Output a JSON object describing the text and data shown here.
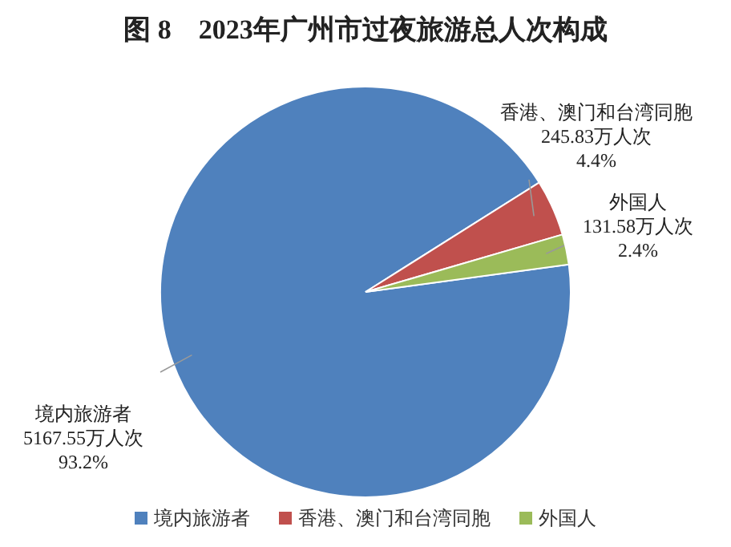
{
  "chart_data": {
    "type": "pie",
    "title": "图 8　2023年广州市过夜旅游总人次构成",
    "categories": [
      "境内旅游者",
      "香港、澳门和台湾同胞",
      "外国人"
    ],
    "values": [
      5167.55,
      245.83,
      131.58
    ],
    "colors": [
      "#4f81bd",
      "#c0504d",
      "#9bbb59"
    ],
    "value_labels": [
      "5167.55万人次\n93.2%",
      "245.83万人次\n4.4%",
      "131.58万人次\n2.4%"
    ],
    "legend": "bottom"
  }
}
